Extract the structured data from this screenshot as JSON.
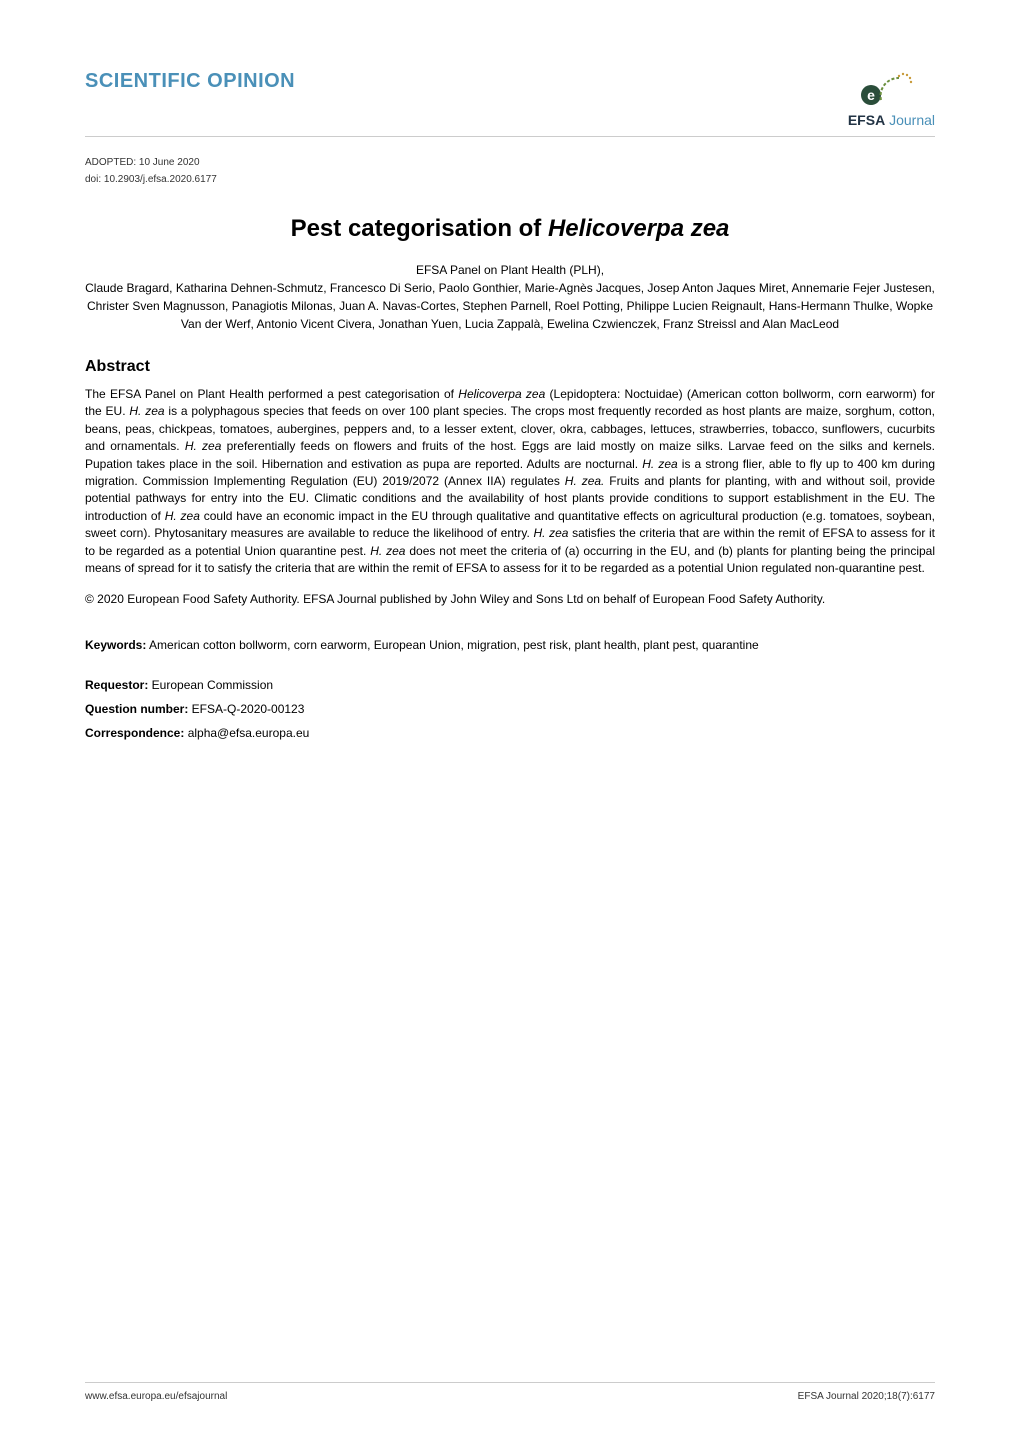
{
  "header": {
    "section_label": "SCIENTIFIC OPINION",
    "logo": {
      "efsa": "EFSA",
      "journal": "Journal",
      "stars_color": "#c89b3c",
      "ring_color": "#6b8f3e",
      "e_bg": "#2a4d3a"
    }
  },
  "meta": {
    "adopted": "ADOPTED: 10 June 2020",
    "doi": "doi: 10.2903/j.efsa.2020.6177"
  },
  "title": {
    "prefix": "Pest categorisation of ",
    "species": "Helicoverpa zea"
  },
  "authors": {
    "panel": "EFSA Panel on Plant Health (PLH),",
    "names": "Claude Bragard, Katharina Dehnen-Schmutz, Francesco Di Serio, Paolo Gonthier, Marie-Agnès Jacques, Josep Anton Jaques Miret, Annemarie Fejer Justesen, Christer Sven Magnusson, Panagiotis Milonas, Juan A. Navas-Cortes, Stephen Parnell, Roel Potting, Philippe Lucien Reignault, Hans-Hermann Thulke, Wopke Van der Werf, Antonio Vicent Civera, Jonathan Yuen, Lucia Zappalà, Ewelina Czwienczek, Franz Streissl and Alan MacLeod"
  },
  "abstract": {
    "heading": "Abstract",
    "body_html": "The EFSA Panel on Plant Health performed a pest categorisation of <span class=\"species\">Helicoverpa zea</span> (Lepidoptera: Noctuidae) (American cotton bollworm, corn earworm) for the EU. <span class=\"species\">H. zea</span> is a polyphagous species that feeds on over 100 plant species. The crops most frequently recorded as host plants are maize, sorghum, cotton, beans, peas, chickpeas, tomatoes, aubergines, peppers and, to a lesser extent, clover, okra, cabbages, lettuces, strawberries, tobacco, sunflowers, cucurbits and ornamentals. <span class=\"species\">H. zea</span> preferentially feeds on flowers and fruits of the host. Eggs are laid mostly on maize silks. Larvae feed on the silks and kernels. Pupation takes place in the soil. Hibernation and estivation as pupa are reported. Adults are nocturnal. <span class=\"species\">H. zea</span> is a strong flier, able to fly up to 400 km during migration. Commission Implementing Regulation (EU) 2019/2072 (Annex IIA) regulates <span class=\"species\">H. zea.</span> Fruits and plants for planting, with and without soil, provide potential pathways for entry into the EU. Climatic conditions and the availability of host plants provide conditions to support establishment in the EU. The introduction of <span class=\"species\">H. zea</span> could have an economic impact in the EU through qualitative and quantitative effects on agricultural production (e.g. tomatoes, soybean, sweet corn). Phytosanitary measures are available to reduce the likelihood of entry. <span class=\"species\">H. zea</span> satisfies the criteria that are within the remit of EFSA to assess for it to be regarded as a potential Union quarantine pest. <span class=\"species\">H. zea</span> does not meet the criteria of (a) occurring in the EU, and (b) plants for planting being the principal means of spread for it to satisfy the criteria that are within the remit of EFSA to assess for it to be regarded as a potential Union regulated non-quarantine pest."
  },
  "copyright_html": "© 2020 European Food Safety Authority. <span class=\"species\">EFSA Journal</span> published by John Wiley and Sons Ltd on behalf of European Food Safety Authority.",
  "keywords": {
    "label": "Keywords:",
    "text": " American cotton bollworm, corn earworm, European Union, migration, pest risk, plant health, plant pest, quarantine"
  },
  "fields": {
    "requestor_label": "Requestor:",
    "requestor_value": " European Commission",
    "question_label": "Question number:",
    "question_value": " EFSA-Q-2020-00123",
    "corr_label": "Correspondence:",
    "corr_value": " alpha@efsa.europa.eu"
  },
  "footer": {
    "left": "www.efsa.europa.eu/efsajournal",
    "right": "EFSA Journal 2020;18(7):6177"
  }
}
